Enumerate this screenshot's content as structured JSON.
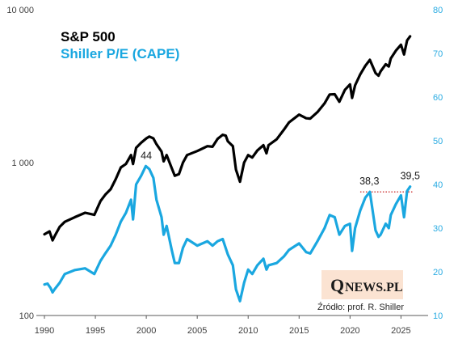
{
  "chart_data": {
    "type": "line",
    "legend": {
      "entries": [
        "S&P 500",
        "Shiller P/E (CAPE)"
      ],
      "placement": "top-left"
    },
    "x_axis": {
      "range": [
        1990,
        2026
      ],
      "ticks": [
        "1990",
        "1995",
        "2000",
        "2005",
        "2010",
        "2015",
        "2020",
        "2025"
      ]
    },
    "y_left": {
      "scale": "log",
      "range": [
        100,
        10000
      ],
      "ticks": [
        {
          "v": 100,
          "label": "100"
        },
        {
          "v": 1000,
          "label": "1 000"
        },
        {
          "v": 10000,
          "label": "10 000"
        }
      ]
    },
    "y_right": {
      "scale": "linear",
      "range": [
        10,
        80
      ],
      "ticks": [
        "10",
        "20",
        "30",
        "40",
        "50",
        "60",
        "70",
        "80"
      ]
    },
    "colors": {
      "sp500": "#000000",
      "cape": "#1aa7e0",
      "reference_line": "#c00000"
    },
    "series": [
      {
        "name": "S&P 500",
        "axis": "left",
        "points": [
          [
            1990.0,
            340
          ],
          [
            1990.5,
            355
          ],
          [
            1990.8,
            310
          ],
          [
            1991.0,
            330
          ],
          [
            1991.5,
            380
          ],
          [
            1992.0,
            410
          ],
          [
            1993.0,
            440
          ],
          [
            1994.0,
            470
          ],
          [
            1994.9,
            455
          ],
          [
            1995.5,
            560
          ],
          [
            1996.0,
            620
          ],
          [
            1996.5,
            670
          ],
          [
            1997.0,
            780
          ],
          [
            1997.5,
            930
          ],
          [
            1998.0,
            980
          ],
          [
            1998.5,
            1120
          ],
          [
            1998.7,
            980
          ],
          [
            1999.0,
            1250
          ],
          [
            1999.5,
            1350
          ],
          [
            2000.0,
            1440
          ],
          [
            2000.3,
            1480
          ],
          [
            2000.7,
            1440
          ],
          [
            2001.0,
            1320
          ],
          [
            2001.5,
            1180
          ],
          [
            2001.7,
            1020
          ],
          [
            2002.0,
            1120
          ],
          [
            2002.5,
            920
          ],
          [
            2002.8,
            820
          ],
          [
            2003.2,
            840
          ],
          [
            2003.6,
            1000
          ],
          [
            2004.0,
            1120
          ],
          [
            2005.0,
            1190
          ],
          [
            2006.0,
            1280
          ],
          [
            2006.5,
            1270
          ],
          [
            2007.0,
            1430
          ],
          [
            2007.5,
            1520
          ],
          [
            2007.8,
            1500
          ],
          [
            2008.0,
            1380
          ],
          [
            2008.5,
            1280
          ],
          [
            2008.8,
            900
          ],
          [
            2009.2,
            750
          ],
          [
            2009.6,
            1000
          ],
          [
            2010.0,
            1120
          ],
          [
            2010.4,
            1080
          ],
          [
            2010.9,
            1200
          ],
          [
            2011.5,
            1300
          ],
          [
            2011.8,
            1150
          ],
          [
            2012.0,
            1300
          ],
          [
            2012.8,
            1420
          ],
          [
            2013.5,
            1640
          ],
          [
            2014.0,
            1830
          ],
          [
            2015.0,
            2060
          ],
          [
            2015.7,
            1950
          ],
          [
            2016.1,
            1940
          ],
          [
            2016.8,
            2140
          ],
          [
            2017.5,
            2440
          ],
          [
            2018.0,
            2790
          ],
          [
            2018.5,
            2800
          ],
          [
            2018.95,
            2500
          ],
          [
            2019.5,
            2990
          ],
          [
            2020.0,
            3250
          ],
          [
            2020.2,
            2650
          ],
          [
            2020.5,
            3200
          ],
          [
            2021.0,
            3770
          ],
          [
            2021.5,
            4300
          ],
          [
            2021.95,
            4700
          ],
          [
            2022.5,
            3850
          ],
          [
            2022.8,
            3700
          ],
          [
            2023.0,
            3950
          ],
          [
            2023.5,
            4400
          ],
          [
            2023.8,
            4250
          ],
          [
            2024.0,
            4800
          ],
          [
            2024.5,
            5400
          ],
          [
            2025.0,
            5900
          ],
          [
            2025.3,
            5100
          ],
          [
            2025.6,
            6300
          ],
          [
            2025.9,
            6700
          ]
        ]
      },
      {
        "name": "Shiller P/E (CAPE)",
        "axis": "right",
        "points": [
          [
            1990.0,
            17.1
          ],
          [
            1990.3,
            17.3
          ],
          [
            1990.6,
            16.3
          ],
          [
            1990.8,
            15.3
          ],
          [
            1991.0,
            16.0
          ],
          [
            1991.5,
            17.5
          ],
          [
            1992.0,
            19.5
          ],
          [
            1993.0,
            20.4
          ],
          [
            1994.0,
            20.8
          ],
          [
            1994.9,
            19.5
          ],
          [
            1995.5,
            22.5
          ],
          [
            1996.0,
            24.3
          ],
          [
            1996.5,
            26.0
          ],
          [
            1997.0,
            28.5
          ],
          [
            1997.5,
            31.5
          ],
          [
            1998.0,
            33.5
          ],
          [
            1998.5,
            36.5
          ],
          [
            1998.7,
            32.0
          ],
          [
            1999.0,
            40.0
          ],
          [
            1999.5,
            42.0
          ],
          [
            1999.95,
            44.2
          ],
          [
            2000.3,
            43.5
          ],
          [
            2000.7,
            41.5
          ],
          [
            2001.0,
            36.5
          ],
          [
            2001.5,
            32.5
          ],
          [
            2001.7,
            28.5
          ],
          [
            2002.0,
            30.5
          ],
          [
            2002.5,
            25.0
          ],
          [
            2002.8,
            22.0
          ],
          [
            2003.2,
            22.0
          ],
          [
            2003.6,
            25.5
          ],
          [
            2004.0,
            27.5
          ],
          [
            2005.0,
            26.0
          ],
          [
            2006.0,
            27.0
          ],
          [
            2006.5,
            26.0
          ],
          [
            2007.0,
            27.0
          ],
          [
            2007.5,
            27.5
          ],
          [
            2008.0,
            24.0
          ],
          [
            2008.5,
            21.5
          ],
          [
            2008.8,
            16.0
          ],
          [
            2009.2,
            13.3
          ],
          [
            2009.6,
            17.5
          ],
          [
            2010.0,
            20.5
          ],
          [
            2010.4,
            19.5
          ],
          [
            2010.9,
            21.5
          ],
          [
            2011.5,
            23.0
          ],
          [
            2011.8,
            20.5
          ],
          [
            2012.0,
            21.5
          ],
          [
            2012.8,
            22.0
          ],
          [
            2013.5,
            23.5
          ],
          [
            2014.0,
            25.0
          ],
          [
            2015.0,
            26.5
          ],
          [
            2015.7,
            24.5
          ],
          [
            2016.1,
            24.2
          ],
          [
            2016.8,
            27.0
          ],
          [
            2017.5,
            30.0
          ],
          [
            2018.0,
            33.0
          ],
          [
            2018.5,
            32.5
          ],
          [
            2018.95,
            28.5
          ],
          [
            2019.5,
            30.5
          ],
          [
            2020.0,
            31.0
          ],
          [
            2020.2,
            24.8
          ],
          [
            2020.5,
            30.0
          ],
          [
            2021.0,
            34.0
          ],
          [
            2021.5,
            37.0
          ],
          [
            2021.95,
            38.3
          ],
          [
            2022.5,
            29.5
          ],
          [
            2022.8,
            28.0
          ],
          [
            2023.0,
            28.5
          ],
          [
            2023.5,
            31.0
          ],
          [
            2023.8,
            30.0
          ],
          [
            2024.0,
            33.0
          ],
          [
            2024.5,
            35.5
          ],
          [
            2025.0,
            37.5
          ],
          [
            2025.3,
            32.5
          ],
          [
            2025.6,
            38.5
          ],
          [
            2025.9,
            39.5
          ]
        ]
      }
    ],
    "annotations": [
      {
        "text": "44",
        "x": 2000.0,
        "y": 44.2,
        "axis": "right"
      },
      {
        "text": "38,3",
        "x": 2021.9,
        "y": 38.3,
        "axis": "right"
      },
      {
        "text": "39,5",
        "x": 2025.9,
        "y": 39.5,
        "axis": "right"
      }
    ],
    "reference_line": {
      "y": 38.3,
      "axis": "right",
      "x_start": 2021.0,
      "x_end": 2026.2,
      "style": "dotted"
    }
  },
  "branding": {
    "logo_q": "Q",
    "logo_rest": "NEWS.PL",
    "source": "Źródło: prof. R. Shiller"
  }
}
